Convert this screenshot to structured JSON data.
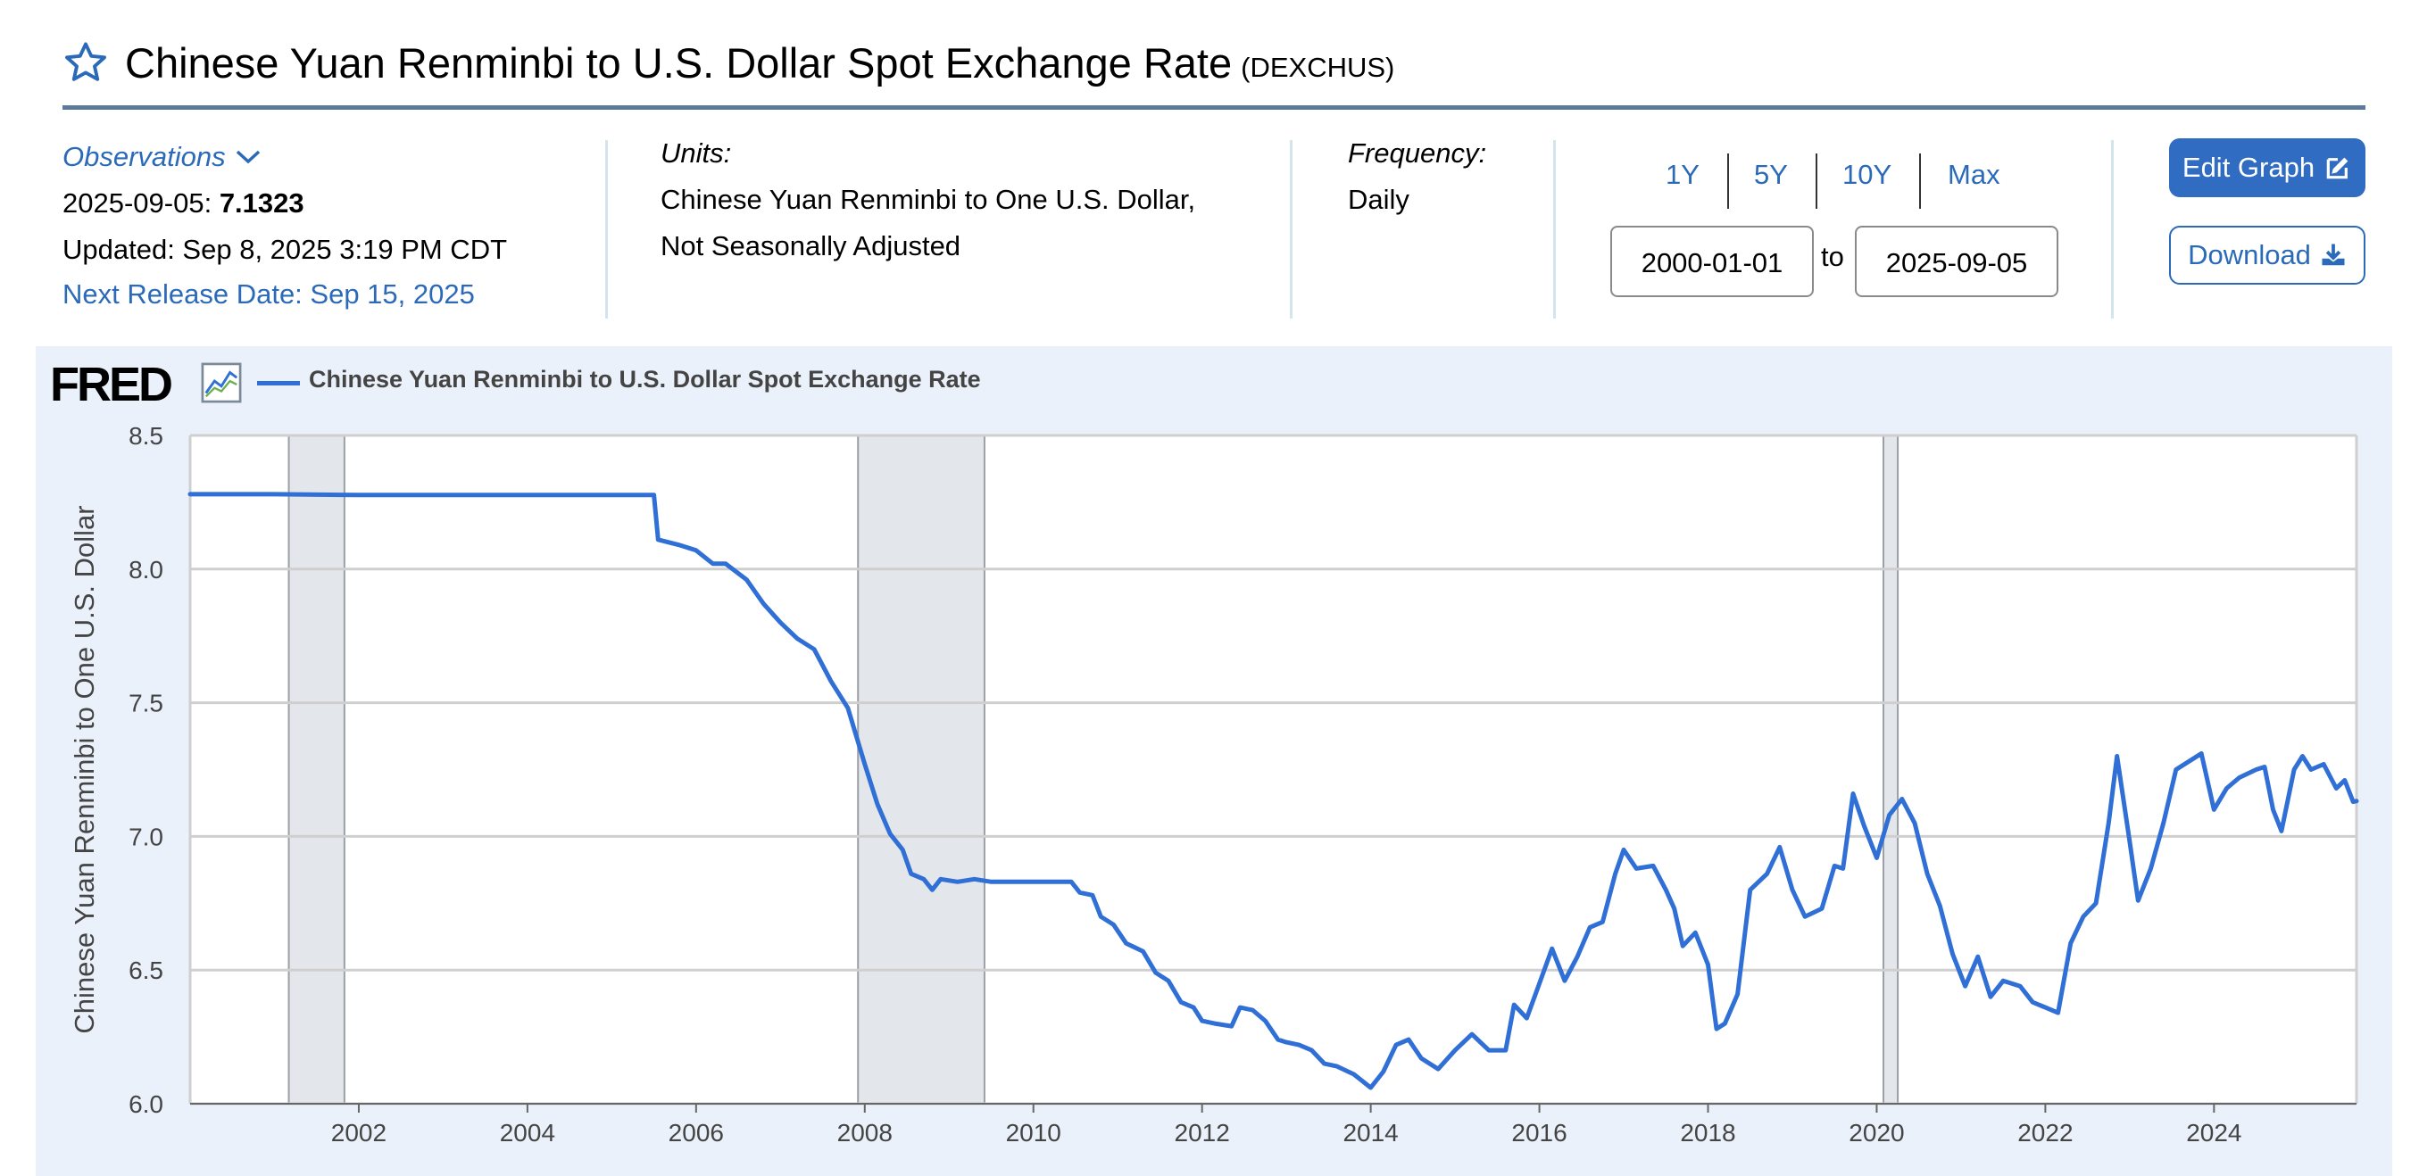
{
  "header": {
    "title": "Chinese Yuan Renminbi to U.S. Dollar Spot Exchange Rate",
    "series_id": "(DEXCHUS)"
  },
  "observations": {
    "link_label": "Observations",
    "date": "2025-09-05:",
    "value": "7.1323",
    "updated": "Updated: Sep 8, 2025 3:19 PM CDT",
    "next_release": "Next Release Date: Sep 15, 2025"
  },
  "units": {
    "label": "Units:",
    "line1": "Chinese Yuan Renminbi to One U.S. Dollar,",
    "line2": "Not Seasonally Adjusted"
  },
  "frequency": {
    "label": "Frequency:",
    "value": "Daily"
  },
  "range": {
    "buttons": [
      "1Y",
      "5Y",
      "10Y",
      "Max"
    ],
    "start": "2000-01-01",
    "to": "to",
    "end": "2025-09-05"
  },
  "actions": {
    "edit": "Edit Graph",
    "download": "Download"
  },
  "logo": "FRED",
  "colors": {
    "line": "#2f6fd6",
    "recession": "#e3e6ea",
    "panel": "#eaf1fa",
    "accent": "#2f6cc2"
  },
  "chart_data": {
    "type": "line",
    "series": [
      {
        "name": "Chinese Yuan Renminbi to U.S. Dollar Spot Exchange Rate",
        "points": [
          [
            2000.0,
            8.28
          ],
          [
            2000.5,
            8.28
          ],
          [
            2001.0,
            8.28
          ],
          [
            2002.0,
            8.277
          ],
          [
            2003.0,
            8.277
          ],
          [
            2004.0,
            8.277
          ],
          [
            2005.0,
            8.277
          ],
          [
            2005.5,
            8.277
          ],
          [
            2005.55,
            8.11
          ],
          [
            2005.8,
            8.09
          ],
          [
            2006.0,
            8.07
          ],
          [
            2006.2,
            8.02
          ],
          [
            2006.35,
            8.02
          ],
          [
            2006.6,
            7.96
          ],
          [
            2006.8,
            7.87
          ],
          [
            2007.0,
            7.8
          ],
          [
            2007.2,
            7.74
          ],
          [
            2007.4,
            7.7
          ],
          [
            2007.6,
            7.58
          ],
          [
            2007.8,
            7.48
          ],
          [
            2008.0,
            7.27
          ],
          [
            2008.15,
            7.12
          ],
          [
            2008.3,
            7.01
          ],
          [
            2008.45,
            6.95
          ],
          [
            2008.55,
            6.86
          ],
          [
            2008.7,
            6.84
          ],
          [
            2008.8,
            6.8
          ],
          [
            2008.9,
            6.84
          ],
          [
            2009.1,
            6.83
          ],
          [
            2009.3,
            6.84
          ],
          [
            2009.5,
            6.83
          ],
          [
            2009.7,
            6.83
          ],
          [
            2010.0,
            6.83
          ],
          [
            2010.3,
            6.83
          ],
          [
            2010.45,
            6.83
          ],
          [
            2010.55,
            6.79
          ],
          [
            2010.7,
            6.78
          ],
          [
            2010.8,
            6.7
          ],
          [
            2010.95,
            6.67
          ],
          [
            2011.1,
            6.6
          ],
          [
            2011.3,
            6.57
          ],
          [
            2011.45,
            6.49
          ],
          [
            2011.6,
            6.46
          ],
          [
            2011.75,
            6.38
          ],
          [
            2011.9,
            6.36
          ],
          [
            2012.0,
            6.31
          ],
          [
            2012.15,
            6.3
          ],
          [
            2012.35,
            6.29
          ],
          [
            2012.45,
            6.36
          ],
          [
            2012.6,
            6.35
          ],
          [
            2012.75,
            6.31
          ],
          [
            2012.9,
            6.24
          ],
          [
            2013.0,
            6.23
          ],
          [
            2013.15,
            6.22
          ],
          [
            2013.3,
            6.2
          ],
          [
            2013.45,
            6.15
          ],
          [
            2013.6,
            6.14
          ],
          [
            2013.8,
            6.11
          ],
          [
            2014.0,
            6.06
          ],
          [
            2014.15,
            6.12
          ],
          [
            2014.3,
            6.22
          ],
          [
            2014.45,
            6.24
          ],
          [
            2014.6,
            6.17
          ],
          [
            2014.8,
            6.13
          ],
          [
            2015.0,
            6.2
          ],
          [
            2015.2,
            6.26
          ],
          [
            2015.4,
            6.2
          ],
          [
            2015.6,
            6.2
          ],
          [
            2015.7,
            6.37
          ],
          [
            2015.85,
            6.32
          ],
          [
            2016.0,
            6.45
          ],
          [
            2016.15,
            6.58
          ],
          [
            2016.3,
            6.46
          ],
          [
            2016.45,
            6.55
          ],
          [
            2016.6,
            6.66
          ],
          [
            2016.75,
            6.68
          ],
          [
            2016.9,
            6.86
          ],
          [
            2017.0,
            6.95
          ],
          [
            2017.15,
            6.88
          ],
          [
            2017.35,
            6.89
          ],
          [
            2017.5,
            6.8
          ],
          [
            2017.6,
            6.73
          ],
          [
            2017.7,
            6.59
          ],
          [
            2017.85,
            6.64
          ],
          [
            2018.0,
            6.52
          ],
          [
            2018.1,
            6.28
          ],
          [
            2018.2,
            6.3
          ],
          [
            2018.35,
            6.41
          ],
          [
            2018.5,
            6.8
          ],
          [
            2018.7,
            6.86
          ],
          [
            2018.85,
            6.96
          ],
          [
            2019.0,
            6.8
          ],
          [
            2019.15,
            6.7
          ],
          [
            2019.35,
            6.73
          ],
          [
            2019.5,
            6.89
          ],
          [
            2019.6,
            6.88
          ],
          [
            2019.72,
            7.16
          ],
          [
            2019.85,
            7.04
          ],
          [
            2020.0,
            6.92
          ],
          [
            2020.15,
            7.08
          ],
          [
            2020.3,
            7.14
          ],
          [
            2020.45,
            7.05
          ],
          [
            2020.6,
            6.86
          ],
          [
            2020.75,
            6.74
          ],
          [
            2020.9,
            6.56
          ],
          [
            2021.05,
            6.44
          ],
          [
            2021.2,
            6.55
          ],
          [
            2021.35,
            6.4
          ],
          [
            2021.5,
            6.46
          ],
          [
            2021.7,
            6.44
          ],
          [
            2021.85,
            6.38
          ],
          [
            2022.0,
            6.36
          ],
          [
            2022.15,
            6.34
          ],
          [
            2022.3,
            6.6
          ],
          [
            2022.45,
            6.7
          ],
          [
            2022.6,
            6.75
          ],
          [
            2022.75,
            7.05
          ],
          [
            2022.85,
            7.3
          ],
          [
            2023.0,
            6.98
          ],
          [
            2023.1,
            6.76
          ],
          [
            2023.25,
            6.88
          ],
          [
            2023.4,
            7.05
          ],
          [
            2023.55,
            7.25
          ],
          [
            2023.7,
            7.28
          ],
          [
            2023.85,
            7.31
          ],
          [
            2024.0,
            7.1
          ],
          [
            2024.15,
            7.18
          ],
          [
            2024.3,
            7.22
          ],
          [
            2024.5,
            7.25
          ],
          [
            2024.6,
            7.26
          ],
          [
            2024.7,
            7.1
          ],
          [
            2024.8,
            7.02
          ],
          [
            2024.95,
            7.25
          ],
          [
            2025.05,
            7.3
          ],
          [
            2025.15,
            7.25
          ],
          [
            2025.3,
            7.27
          ],
          [
            2025.45,
            7.18
          ],
          [
            2025.55,
            7.21
          ],
          [
            2025.65,
            7.13
          ],
          [
            2025.69,
            7.1323
          ]
        ]
      }
    ],
    "recessions": [
      [
        2001.17,
        2001.83
      ],
      [
        2007.92,
        2009.42
      ],
      [
        2020.08,
        2020.25
      ]
    ],
    "xlim": [
      2000.0,
      2025.69
    ],
    "ylim": [
      6.0,
      8.5
    ],
    "xticks": [
      2002,
      2004,
      2006,
      2008,
      2010,
      2012,
      2014,
      2016,
      2018,
      2020,
      2022,
      2024
    ],
    "yticks": [
      "6.0",
      "6.5",
      "7.0",
      "7.5",
      "8.0",
      "8.5"
    ],
    "ylabel": "Chinese Yuan Renminbi to One U.S. Dollar",
    "xlabel": "",
    "grid": true,
    "legend": "top-left"
  }
}
